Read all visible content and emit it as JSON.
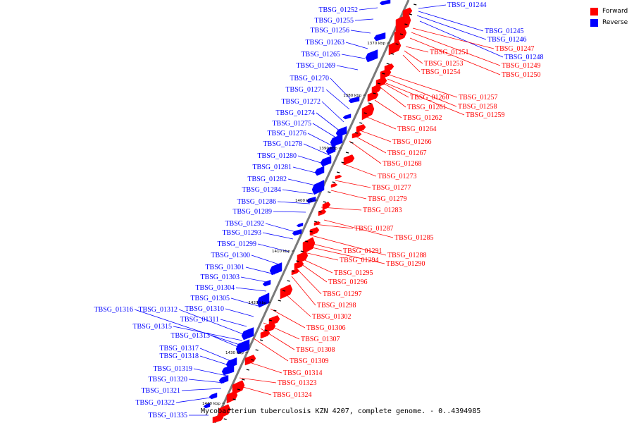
{
  "colors": {
    "forward": "#ff0000",
    "reverse": "#0000ff",
    "backbone": "#7a7a7a",
    "ticks": "#000000"
  },
  "legend": {
    "forward_label": "Forward",
    "reverse_label": "Reverse"
  },
  "caption": "Mycobacterium tuberculosis KZN 4207, complete genome. - 0..4394985",
  "scale_labels": [
    "1370 kbp",
    "1380 kbp",
    "1390 kbp",
    "1400 kbp",
    "1410 kbp",
    "1420 kbp",
    "1430 kbp",
    "1440 kbp"
  ],
  "reverse_genes": [
    "TBSG_01252",
    "TBSG_01255",
    "TBSG_01256",
    "TBSG_01263",
    "TBSG_01265",
    "TBSG_01269",
    "TBSG_01270",
    "TBSG_01271",
    "TBSG_01272",
    "TBSG_01274",
    "TBSG_01275",
    "TBSG_01276",
    "TBSG_01278",
    "TBSG_01280",
    "TBSG_01281",
    "TBSG_01282",
    "TBSG_01284",
    "TBSG_01286",
    "TBSG_01289",
    "TBSG_01292",
    "TBSG_01293",
    "TBSG_01299",
    "TBSG_01300",
    "TBSG_01301",
    "TBSG_01303",
    "TBSG_01304",
    "TBSG_01305",
    "TBSG_01310",
    "TBSG_01316",
    "TBSG_01312",
    "TBSG_01311",
    "TBSG_01315",
    "TBSG_01313",
    "TBSG_01317",
    "TBSG_01318",
    "TBSG_01319",
    "TBSG_01320",
    "TBSG_01321",
    "TBSG_01322",
    "TBSG_01335"
  ],
  "reverse_right_genes": [
    "TBSG_01244",
    "TBSG_01245",
    "TBSG_01246",
    "TBSG_01248"
  ],
  "forward_genes": [
    "TBSG_01247",
    "TBSG_01251",
    "TBSG_01249",
    "TBSG_01253",
    "TBSG_01250",
    "TBSG_01254",
    "TBSG_01257",
    "TBSG_01260",
    "TBSG_01258",
    "TBSG_01261",
    "TBSG_01259",
    "TBSG_01262",
    "TBSG_01264",
    "TBSG_01266",
    "TBSG_01267",
    "TBSG_01268",
    "TBSG_01273",
    "TBSG_01277",
    "TBSG_01279",
    "TBSG_01283",
    "TBSG_01287",
    "TBSG_01285",
    "TBSG_01291",
    "TBSG_01288",
    "TBSG_01294",
    "TBSG_01290",
    "TBSG_01295",
    "TBSG_01296",
    "TBSG_01297",
    "TBSG_01298",
    "TBSG_01302",
    "TBSG_01306",
    "TBSG_01307",
    "TBSG_01308",
    "TBSG_01309",
    "TBSG_01314",
    "TBSG_01323",
    "TBSG_01324"
  ]
}
